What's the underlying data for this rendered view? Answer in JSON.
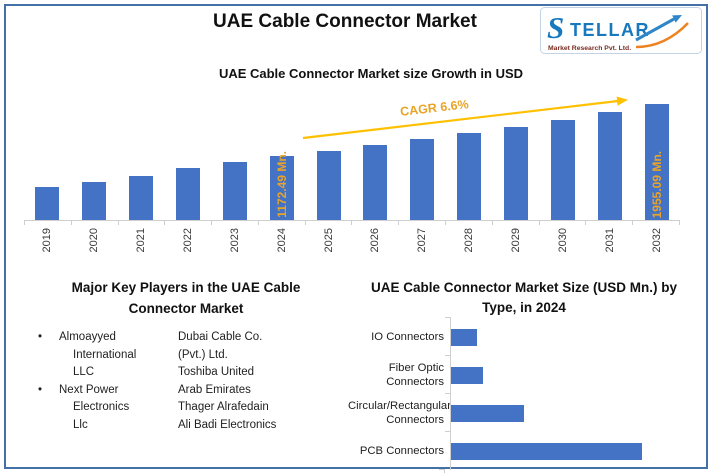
{
  "header": {
    "title": "UAE Cable Connector Market"
  },
  "logo": {
    "brand": "STELLAR",
    "subtext": "Market Research Pvt. Ltd."
  },
  "colors": {
    "bar_blue": "#4472C4",
    "gold_arrow": "#FFC000",
    "gold_text": "#E9A428",
    "frame_blue": "#4472A8",
    "axis_gray": "#CFCFCF",
    "logo_blue": "#1878BE",
    "logo_orange": "#EF8220",
    "logo_red": "#7A2C20"
  },
  "chart_data": [
    {
      "type": "bar",
      "title": "UAE Cable Connector Market size Growth in USD",
      "unit": "USD Mn.",
      "categories": [
        "2019",
        "2020",
        "2021",
        "2022",
        "2023",
        "2024",
        "2025",
        "2026",
        "2027",
        "2028",
        "2029",
        "2030",
        "2031",
        "2032"
      ],
      "values": [
        700,
        780,
        870,
        980,
        1075,
        1172.49,
        1250,
        1333,
        1420,
        1514,
        1614,
        1720,
        1834,
        1955.09
      ],
      "bar_labels": {
        "2024": "1172.49 Mn.",
        "2032": "1955.09 Mn."
      },
      "annotation": "CAGR 6.6%",
      "ylim": [
        200,
        1955.09
      ],
      "xlabel": "",
      "ylabel": "",
      "grid": false,
      "legend": false,
      "tick_label_rotation": -90
    },
    {
      "type": "bar",
      "orientation": "horizontal",
      "title": "UAE Cable Connector Market Size (USD Mn.) by Type, in 2024",
      "categories": [
        "IO Connectors",
        "Fiber Optic Connectors",
        "Circular/Rectangular Connectors",
        "PCB Connectors"
      ],
      "category_label_lines": [
        [
          "IO Connectors"
        ],
        [
          "Fiber Optic",
          "Connectors"
        ],
        [
          "Circular/Rectangular",
          "Connectors"
        ],
        [
          "PCB Connectors"
        ]
      ],
      "values": [
        95,
        115,
        265,
        690
      ],
      "xlim": [
        0,
        730
      ],
      "grid": false,
      "legend": false
    }
  ],
  "key_players": {
    "heading": "Major Key Players in the UAE Cable Connector Market",
    "bullet": "•",
    "column1": [
      {
        "name": "Almoayyed International LLC",
        "lines": [
          "Almoayyed",
          "International",
          "LLC"
        ]
      },
      {
        "name": "Next Power Electronics Llc",
        "lines": [
          "Next Power",
          "Electronics",
          "Llc"
        ]
      }
    ],
    "column2": [
      {
        "name": "Dubai Cable Co. (Pvt.) Ltd.",
        "lines": [
          "Dubai Cable Co.",
          "(Pvt.) Ltd."
        ]
      },
      {
        "name": "Toshiba United Arab Emirates",
        "lines": [
          "Toshiba United",
          "Arab Emirates"
        ]
      },
      {
        "name": "Thager Alrafedain",
        "lines": [
          "Thager Alrafedain"
        ]
      },
      {
        "name": "Ali Badi Electronics",
        "lines": [
          "Ali Badi Electronics"
        ]
      }
    ]
  }
}
